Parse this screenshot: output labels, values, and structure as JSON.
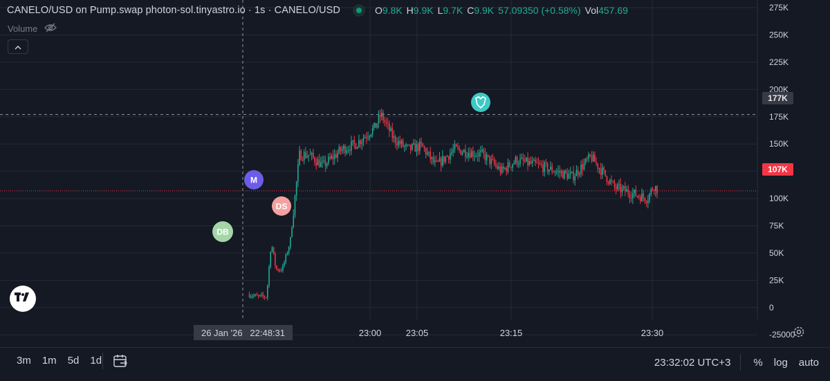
{
  "legend": {
    "title": "CANELO/USD on Pump.swap photon-sol.tinyastro.io · 1s · CANELO/USD",
    "o_label": "O",
    "o_value": "9.8K",
    "h_label": "H",
    "h_value": "9.9K",
    "l_label": "L",
    "l_value": "9.7K",
    "c_label": "C",
    "c_value": "9.9K",
    "change": "57.09350 (+0.58%)",
    "vol_label": "Vol",
    "vol_value": "457.69"
  },
  "volume": {
    "label": "Volume",
    "icon": "eye-off-icon"
  },
  "colors": {
    "background": "#151924",
    "up": "#22ab94",
    "down": "#f23645",
    "grid": "#252a36",
    "text": "#d1d4dc"
  },
  "price_axis": {
    "ticks": [
      "275K",
      "250K",
      "225K",
      "200K",
      "175K",
      "150K",
      "125K",
      "100K",
      "75K",
      "50K",
      "25K",
      "0",
      "-25000"
    ],
    "crosshair_label": "177K",
    "last_price_label": "107K"
  },
  "time_axis": {
    "ticks": [
      "23:00",
      "23:05",
      "23:15",
      "23:30"
    ],
    "crosshair_label": "26 Jan '26   22:48:31"
  },
  "markers": [
    {
      "label": "DB",
      "color": "#a5d6a7"
    },
    {
      "label": "M",
      "color": "#6c5ce7"
    },
    {
      "label": "DS",
      "color": "#f5a0a0"
    },
    {
      "label": "lion-badge-icon",
      "color": "#3ec9c4"
    }
  ],
  "chart_data": {
    "type": "candlestick",
    "x": [
      "22:47:10",
      "22:48:00",
      "22:49:00",
      "22:49:30",
      "22:50:00",
      "22:50:40",
      "22:51:30",
      "22:52:30",
      "22:53:30",
      "22:55:00",
      "22:57:00",
      "22:58:30",
      "23:00:30",
      "23:01:10",
      "23:02:30",
      "23:04:00",
      "23:05:30",
      "23:07:00",
      "23:09:00",
      "23:12:00",
      "23:14:00",
      "23:15:30",
      "23:18:00",
      "23:21:30",
      "23:23:30",
      "23:26:00",
      "23:29:30",
      "23:30:10",
      "23:30:40"
    ],
    "close": [
      12000,
      10000,
      10000,
      60000,
      35000,
      35000,
      60000,
      140000,
      140000,
      130000,
      145000,
      150000,
      165000,
      177000,
      155000,
      145000,
      148000,
      130000,
      145000,
      140000,
      125000,
      135000,
      130000,
      120000,
      138000,
      110000,
      100000,
      112000,
      107000
    ],
    "ylim": [
      -35000,
      282000
    ],
    "last_price": 107000
  },
  "bottom_bar": {
    "ranges": [
      "3m",
      "1m",
      "5d",
      "1d"
    ],
    "clock": "23:32:02 UTC+3",
    "percent": "%",
    "log": "log",
    "auto": "auto"
  }
}
